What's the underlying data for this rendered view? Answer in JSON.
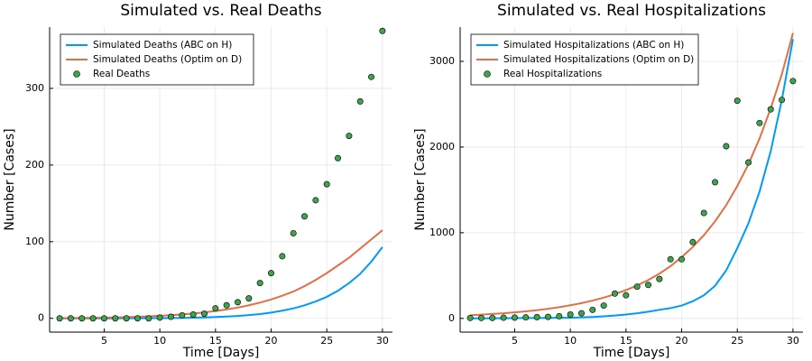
{
  "chart_data": [
    {
      "type": "line",
      "title": "Simulated vs. Real Deaths",
      "x_label": "Time [Days]",
      "y_label": "Number [Cases]",
      "x": [
        1,
        2,
        3,
        4,
        5,
        6,
        7,
        8,
        9,
        10,
        11,
        12,
        13,
        14,
        15,
        16,
        17,
        18,
        19,
        20,
        21,
        22,
        23,
        24,
        25,
        26,
        27,
        28,
        29,
        30
      ],
      "xlim": [
        0.1,
        30.9
      ],
      "ylim": [
        -18,
        380
      ],
      "xticks": [
        5,
        10,
        15,
        20,
        25,
        30
      ],
      "yticks": [
        0,
        100,
        200,
        300
      ],
      "grid": true,
      "legend": "top-left",
      "series": [
        {
          "name": "Simulated Deaths (ABC on H)",
          "color": "#009af9",
          "mode": "lines",
          "values": [
            0,
            0,
            0,
            0,
            0,
            0,
            0.1,
            0.1,
            0.2,
            0.3,
            0.4,
            0.6,
            0.9,
            1.2,
            1.7,
            2.3,
            3.1,
            4.2,
            5.6,
            7.5,
            10,
            13,
            17,
            22,
            28,
            36,
            46,
            58,
            74,
            93
          ]
        },
        {
          "name": "Simulated Deaths (Optim on D)",
          "color": "#e26f46",
          "mode": "lines",
          "values": [
            0.3,
            0.4,
            0.5,
            0.7,
            0.9,
            1.2,
            1.6,
            2,
            2.6,
            3.3,
            4.1,
            5.1,
            6.3,
            7.8,
            9.5,
            11.6,
            14,
            17,
            20.5,
            24.6,
            29.5,
            35,
            42,
            50,
            59,
            69,
            79,
            91,
            103,
            115
          ]
        },
        {
          "name": "Real Deaths",
          "color": "#3da44d",
          "mode": "markers",
          "values": [
            0,
            0,
            0,
            0,
            0,
            0,
            0,
            0,
            0,
            1,
            2,
            4,
            5,
            6,
            13,
            17,
            21,
            26,
            46,
            59,
            81,
            111,
            133,
            154,
            175,
            209,
            238,
            283,
            315,
            375
          ]
        }
      ]
    },
    {
      "type": "line",
      "title": "Simulated vs. Real Hospitalizations",
      "x_label": "Time [Days]",
      "y_label": "Number [Cases]",
      "x": [
        1,
        2,
        3,
        4,
        5,
        6,
        7,
        8,
        9,
        10,
        11,
        12,
        13,
        14,
        15,
        16,
        17,
        18,
        19,
        20,
        21,
        22,
        23,
        24,
        25,
        26,
        27,
        28,
        29,
        30
      ],
      "xlim": [
        0.1,
        30.9
      ],
      "ylim": [
        -160,
        3400
      ],
      "xticks": [
        5,
        10,
        15,
        20,
        25,
        30
      ],
      "yticks": [
        0,
        1000,
        2000,
        3000
      ],
      "grid": true,
      "legend": "top-left",
      "series": [
        {
          "name": "Simulated Hospitalizations (ABC on H)",
          "color": "#009af9",
          "mode": "lines",
          "values": [
            1,
            1,
            2,
            2,
            3,
            4,
            5,
            6,
            7,
            8,
            12,
            17,
            24,
            33,
            45,
            60,
            78,
            100,
            120,
            150,
            200,
            270,
            380,
            560,
            820,
            1110,
            1480,
            1950,
            2550,
            3260
          ]
        },
        {
          "name": "Simulated Hospitalizations (Optim on D)",
          "color": "#e26f46",
          "mode": "lines",
          "values": [
            38,
            44,
            52,
            60,
            71,
            82,
            96,
            112,
            131,
            153,
            178,
            208,
            242,
            283,
            330,
            384,
            448,
            522,
            609,
            715,
            833,
            971,
            1133,
            1321,
            1545,
            1800,
            2100,
            2450,
            2850,
            3330
          ]
        },
        {
          "name": "Real Hospitalizations",
          "color": "#3da44d",
          "mode": "markers",
          "values": [
            5,
            5,
            5,
            8,
            10,
            12,
            15,
            18,
            25,
            45,
            60,
            100,
            150,
            290,
            270,
            370,
            390,
            460,
            690,
            690,
            890,
            1230,
            1590,
            2010,
            2540,
            1820,
            2280,
            2440,
            2550,
            2770
          ]
        }
      ]
    }
  ]
}
